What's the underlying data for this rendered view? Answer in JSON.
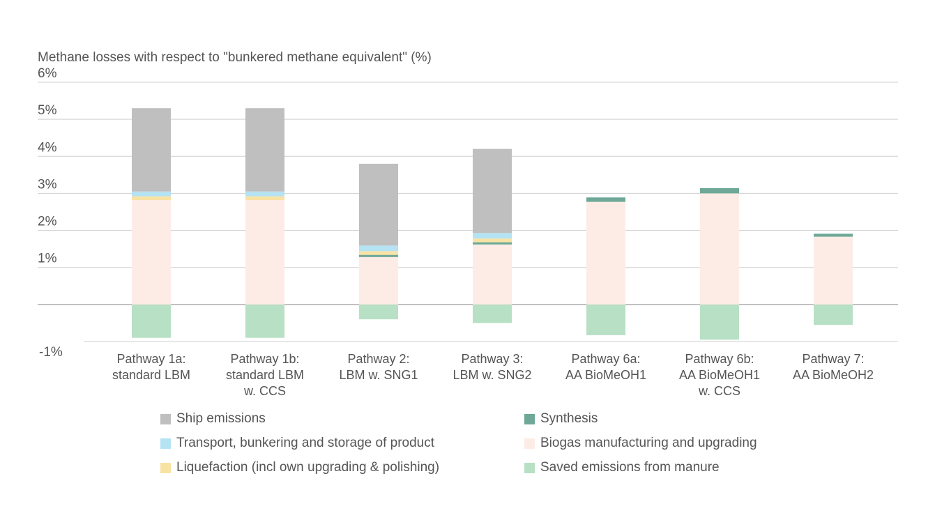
{
  "chart_data": {
    "type": "bar",
    "stacked": true,
    "title": "Methane losses with respect to \"bunkered methane equivalent\" (%)",
    "ylim": [
      -1,
      6
    ],
    "yticks": [
      -1,
      0,
      1,
      2,
      3,
      4,
      5,
      6
    ],
    "ytick_labels": [
      "-1%",
      "",
      "1%",
      "2%",
      "3%",
      "4%",
      "5%",
      "6%"
    ],
    "grid": true,
    "legend_position": "bottom",
    "categories": [
      [
        "Pathway 1a:",
        "standard LBM"
      ],
      [
        "Pathway 1b:",
        "standard LBM",
        "w. CCS"
      ],
      [
        "Pathway 2:",
        "LBM w. SNG1"
      ],
      [
        "Pathway 3:",
        "LBM w. SNG2"
      ],
      [
        "Pathway 6a:",
        "AA BioMeOH1"
      ],
      [
        "Pathway 6b:",
        "AA BioMeOH1",
        "w. CCS"
      ],
      [
        "Pathway 7:",
        "AA BioMeOH2"
      ]
    ],
    "series": [
      {
        "name": "Saved emissions from manure",
        "color": "#b7e0c4",
        "values": [
          -0.9,
          -0.9,
          -0.4,
          -0.5,
          -0.83,
          -0.95,
          -0.55
        ]
      },
      {
        "name": "Biogas manufacturing and upgrading",
        "color": "#fdece6",
        "values": [
          2.82,
          2.82,
          1.28,
          1.62,
          2.77,
          3.0,
          1.83
        ]
      },
      {
        "name": "Synthesis",
        "color": "#6fa897",
        "values": [
          0,
          0,
          0.06,
          0.06,
          0.12,
          0.14,
          0.08
        ]
      },
      {
        "name": "Liquefaction (incl own upgrading & polishing)",
        "color": "#f9e3a4",
        "values": [
          0.1,
          0.1,
          0.1,
          0.1,
          0,
          0,
          0
        ]
      },
      {
        "name": "Transport, bunkering and storage of product",
        "color": "#b5e3f3",
        "values": [
          0.13,
          0.13,
          0.15,
          0.15,
          0,
          0,
          0
        ]
      },
      {
        "name": "Ship emissions",
        "color": "#bfbfbf",
        "values": [
          2.25,
          2.25,
          2.21,
          2.27,
          0,
          0,
          0
        ]
      }
    ],
    "legend_order": [
      "Ship emissions",
      "Transport, bunkering and storage of product",
      "Liquefaction (incl own upgrading & polishing)",
      "Synthesis",
      "Biogas manufacturing and upgrading",
      "Saved emissions from manure"
    ]
  }
}
